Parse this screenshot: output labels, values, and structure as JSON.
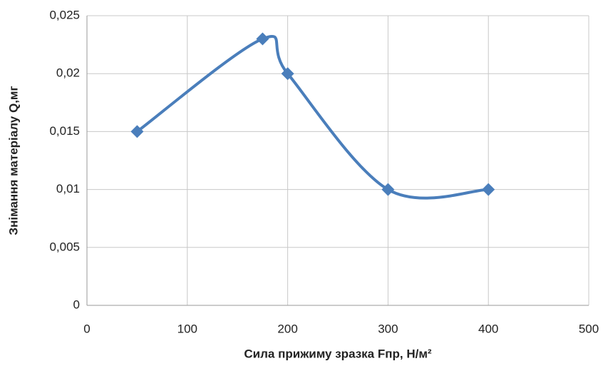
{
  "chart_data": {
    "type": "scatter",
    "x_label": "Сила прижиму зразка Fпр, Н/м²",
    "y_label": "Знімання матеріалу  Q,мг",
    "x": [
      50,
      175,
      200,
      300,
      400
    ],
    "series": [
      {
        "color": "#4a7ebb",
        "values": [
          0.015,
          0.023,
          0.02,
          0.01,
          0.01
        ]
      }
    ],
    "smooth": true,
    "xlim": [
      0,
      500
    ],
    "xticks": [
      0,
      100,
      200,
      300,
      400,
      500
    ],
    "ylim": [
      0,
      0.025
    ],
    "yticks": [
      0,
      {
        "value": 0.005,
        "label": "0,005"
      },
      {
        "value": 0.01,
        "label": "0,01"
      },
      {
        "value": 0.015,
        "label": "0,015"
      },
      {
        "value": 0.02,
        "label": "0,02"
      },
      {
        "value": 0.025,
        "label": "0,025"
      }
    ],
    "grid": true
  }
}
